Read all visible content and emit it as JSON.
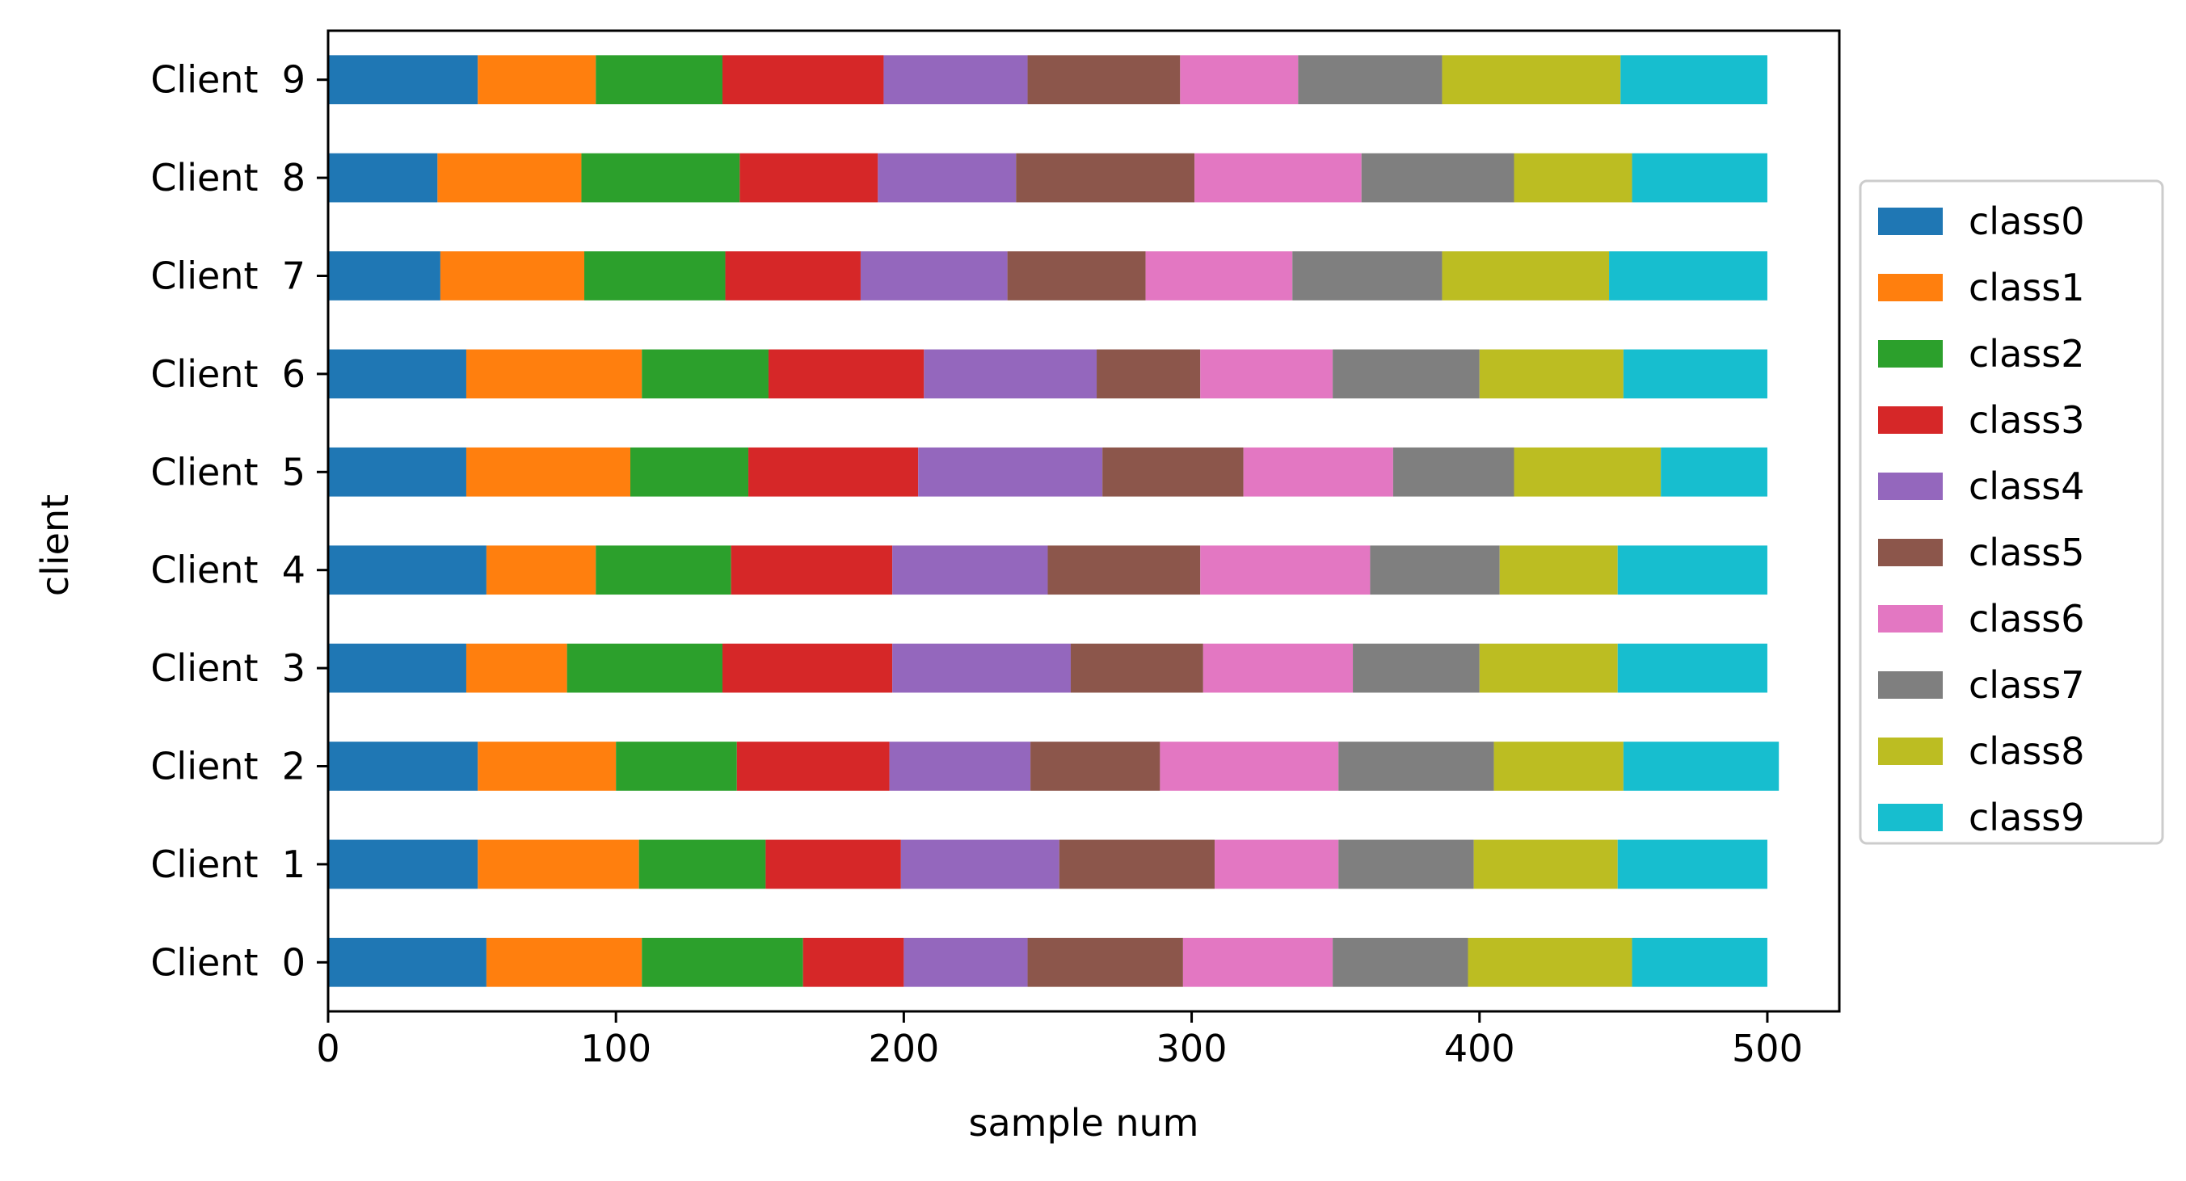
{
  "chart_data": {
    "type": "bar",
    "orientation": "horizontal",
    "stacked": true,
    "title": "",
    "xlabel": "sample num",
    "ylabel": "client",
    "xlim": [
      0,
      525
    ],
    "xticks": [
      0,
      100,
      200,
      300,
      400,
      500
    ],
    "grid": false,
    "legend_position": "right-center",
    "categories": [
      "Client  0",
      "Client  1",
      "Client  2",
      "Client  3",
      "Client  4",
      "Client  5",
      "Client  6",
      "Client  7",
      "Client  8",
      "Client  9"
    ],
    "series": [
      {
        "name": "class0",
        "color": "#1f77b4",
        "values": [
          55,
          52,
          52,
          48,
          55,
          48,
          48,
          39,
          38,
          52
        ]
      },
      {
        "name": "class1",
        "color": "#ff7f0e",
        "values": [
          54,
          56,
          48,
          35,
          38,
          57,
          61,
          50,
          50,
          41
        ]
      },
      {
        "name": "class2",
        "color": "#2ca02c",
        "values": [
          56,
          44,
          42,
          54,
          47,
          41,
          44,
          49,
          55,
          44
        ]
      },
      {
        "name": "class3",
        "color": "#d62728",
        "values": [
          35,
          47,
          53,
          59,
          56,
          59,
          54,
          47,
          48,
          56
        ]
      },
      {
        "name": "class4",
        "color": "#9467bd",
        "values": [
          43,
          55,
          49,
          62,
          54,
          64,
          60,
          51,
          48,
          50
        ]
      },
      {
        "name": "class5",
        "color": "#8c564b",
        "values": [
          54,
          54,
          45,
          46,
          53,
          49,
          36,
          48,
          62,
          53
        ]
      },
      {
        "name": "class6",
        "color": "#e377c2",
        "values": [
          52,
          43,
          62,
          52,
          59,
          52,
          46,
          51,
          58,
          41
        ]
      },
      {
        "name": "class7",
        "color": "#7f7f7f",
        "values": [
          47,
          47,
          54,
          44,
          45,
          42,
          51,
          52,
          53,
          50
        ]
      },
      {
        "name": "class8",
        "color": "#bcbd22",
        "values": [
          57,
          50,
          45,
          48,
          41,
          51,
          50,
          58,
          41,
          62
        ]
      },
      {
        "name": "class9",
        "color": "#17becf",
        "values": [
          47,
          52,
          54,
          52,
          52,
          37,
          50,
          55,
          47,
          51
        ]
      }
    ]
  }
}
